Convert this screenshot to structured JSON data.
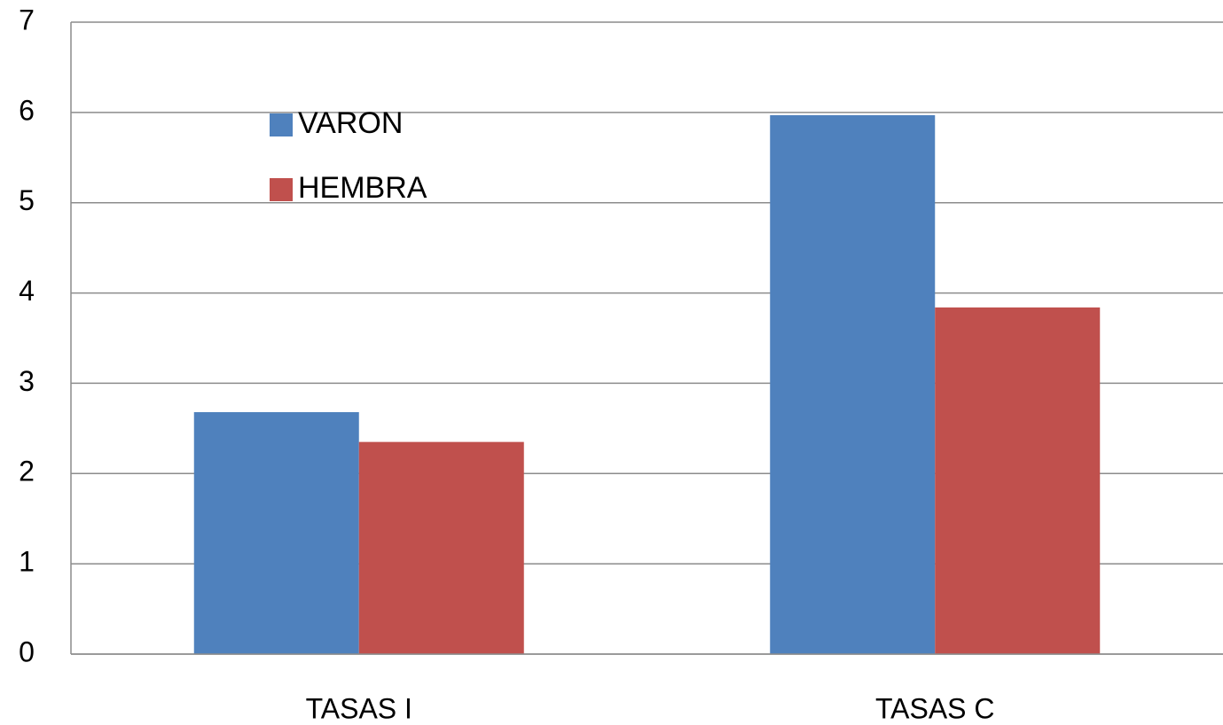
{
  "chart_data": {
    "type": "bar",
    "categories": [
      "TASAS I",
      "TASAS C"
    ],
    "series": [
      {
        "name": "VARON",
        "color": "#4f81bd",
        "values": [
          2.68,
          5.97
        ]
      },
      {
        "name": "HEMBRA",
        "color": "#c0504d",
        "values": [
          2.35,
          3.84
        ]
      }
    ],
    "ylim": [
      0,
      7
    ],
    "yticks": [
      0,
      1,
      2,
      3,
      4,
      5,
      6,
      7
    ],
    "grid": true
  }
}
